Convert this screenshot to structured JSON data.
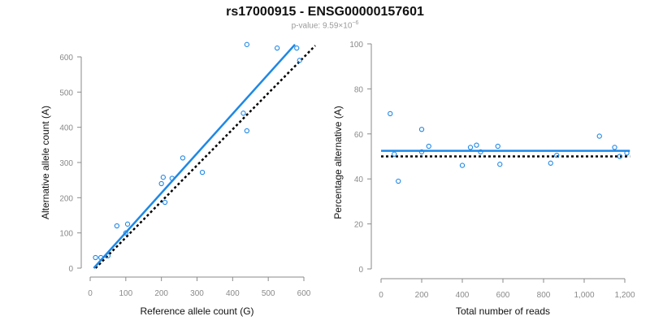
{
  "title": "rs17000915 - ENSG00000157601",
  "subtitle": {
    "prefix": "p-value: 9.59×10",
    "exponent": "−6"
  },
  "colors": {
    "series": "#1e88e5",
    "reference_line": "#000000",
    "axis": "#8a8a8a"
  },
  "chart_data": [
    {
      "type": "scatter",
      "xlabel": "Reference allele count (G)",
      "ylabel": "Alternative allele count (A)",
      "xlim": [
        0,
        600
      ],
      "ylim": [
        0,
        600
      ],
      "xticks": [
        0,
        100,
        200,
        300,
        400,
        500,
        600
      ],
      "yticks": [
        0,
        100,
        200,
        300,
        400,
        500,
        600
      ],
      "xtick_labels": [
        "0",
        "100",
        "200",
        "300",
        "400",
        "500",
        "600"
      ],
      "ytick_labels": [
        "0",
        "100",
        "200",
        "300",
        "400",
        "500",
        "600"
      ],
      "grid": false,
      "points": [
        {
          "x": 15,
          "y": 30
        },
        {
          "x": 30,
          "y": 30
        },
        {
          "x": 50,
          "y": 35
        },
        {
          "x": 75,
          "y": 120
        },
        {
          "x": 100,
          "y": 100
        },
        {
          "x": 105,
          "y": 125
        },
        {
          "x": 200,
          "y": 240
        },
        {
          "x": 205,
          "y": 258
        },
        {
          "x": 210,
          "y": 187
        },
        {
          "x": 230,
          "y": 255
        },
        {
          "x": 260,
          "y": 313
        },
        {
          "x": 315,
          "y": 272
        },
        {
          "x": 430,
          "y": 440
        },
        {
          "x": 440,
          "y": 390
        },
        {
          "x": 440,
          "y": 635
        },
        {
          "x": 525,
          "y": 625
        },
        {
          "x": 580,
          "y": 625
        },
        {
          "x": 588,
          "y": 590
        }
      ],
      "fit_line": {
        "x": [
          10,
          575
        ],
        "y": [
          0,
          635
        ]
      },
      "reference_line": {
        "x": [
          15,
          632
        ],
        "y": [
          0,
          632
        ]
      }
    },
    {
      "type": "scatter",
      "xlabel": "Total number of reads",
      "ylabel": "Percentage alternative (A)",
      "xlim": [
        0,
        1200
      ],
      "ylim": [
        0,
        100
      ],
      "xticks": [
        0,
        200,
        400,
        600,
        800,
        1000,
        1200
      ],
      "yticks": [
        0,
        20,
        40,
        60,
        80,
        100
      ],
      "xtick_labels": [
        "0",
        "200",
        "400",
        "600",
        "800",
        "1,000",
        "1,200"
      ],
      "ytick_labels": [
        "0",
        "20",
        "40",
        "60",
        "80",
        "100"
      ],
      "grid": false,
      "points": [
        {
          "x": 45,
          "y": 69
        },
        {
          "x": 65,
          "y": 51
        },
        {
          "x": 85,
          "y": 39
        },
        {
          "x": 200,
          "y": 62
        },
        {
          "x": 200,
          "y": 52
        },
        {
          "x": 235,
          "y": 54.5
        },
        {
          "x": 400,
          "y": 46
        },
        {
          "x": 440,
          "y": 54
        },
        {
          "x": 470,
          "y": 55
        },
        {
          "x": 490,
          "y": 52
        },
        {
          "x": 575,
          "y": 54.5
        },
        {
          "x": 585,
          "y": 46.5
        },
        {
          "x": 835,
          "y": 47
        },
        {
          "x": 865,
          "y": 50.5
        },
        {
          "x": 1075,
          "y": 59
        },
        {
          "x": 1150,
          "y": 54
        },
        {
          "x": 1175,
          "y": 50
        },
        {
          "x": 1210,
          "y": 51.5
        }
      ],
      "fit_line": {
        "x": [
          0,
          1225
        ],
        "y": [
          52.5,
          52.5
        ]
      },
      "reference_line": {
        "x": [
          0,
          1225
        ],
        "y": [
          50,
          50
        ]
      }
    }
  ]
}
